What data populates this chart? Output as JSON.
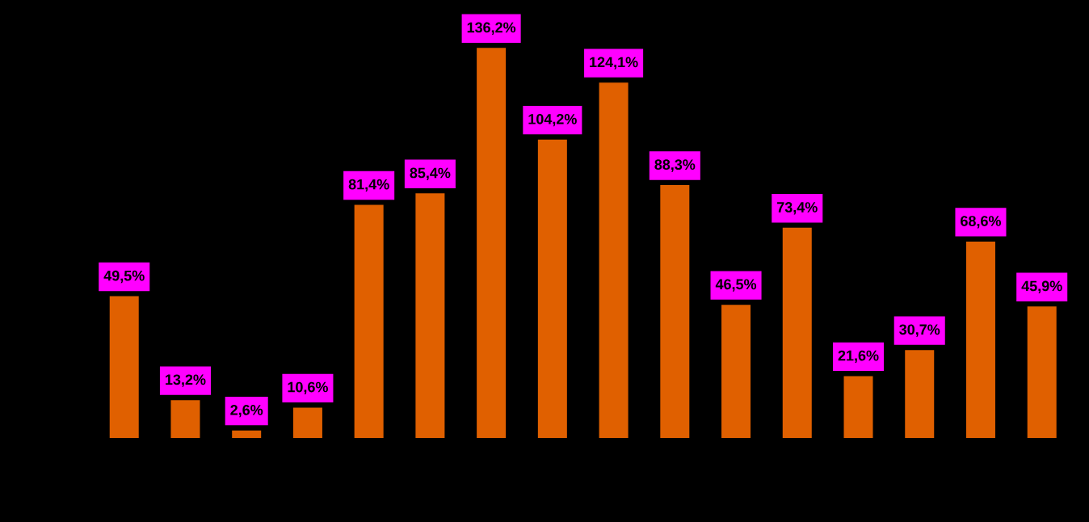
{
  "chart_data": {
    "type": "bar",
    "categories": [
      null,
      null,
      null,
      null,
      null,
      null,
      null,
      null,
      null,
      null,
      null,
      null,
      null,
      null,
      null,
      null
    ],
    "values": [
      49.5,
      13.2,
      2.6,
      10.6,
      81.4,
      85.4,
      136.2,
      104.2,
      124.1,
      88.3,
      46.5,
      73.4,
      21.6,
      30.7,
      68.6,
      45.9
    ],
    "value_labels": [
      "49,5%",
      "13,2%",
      "2,6%",
      "10,6%",
      "81,4%",
      "85,4%",
      "136,2%",
      "104,2%",
      "124,1%",
      "88,3%",
      "46,5%",
      "73,4%",
      "21,6%",
      "30,7%",
      "68,6%",
      "45,9%"
    ],
    "color": "#e06000"
  }
}
